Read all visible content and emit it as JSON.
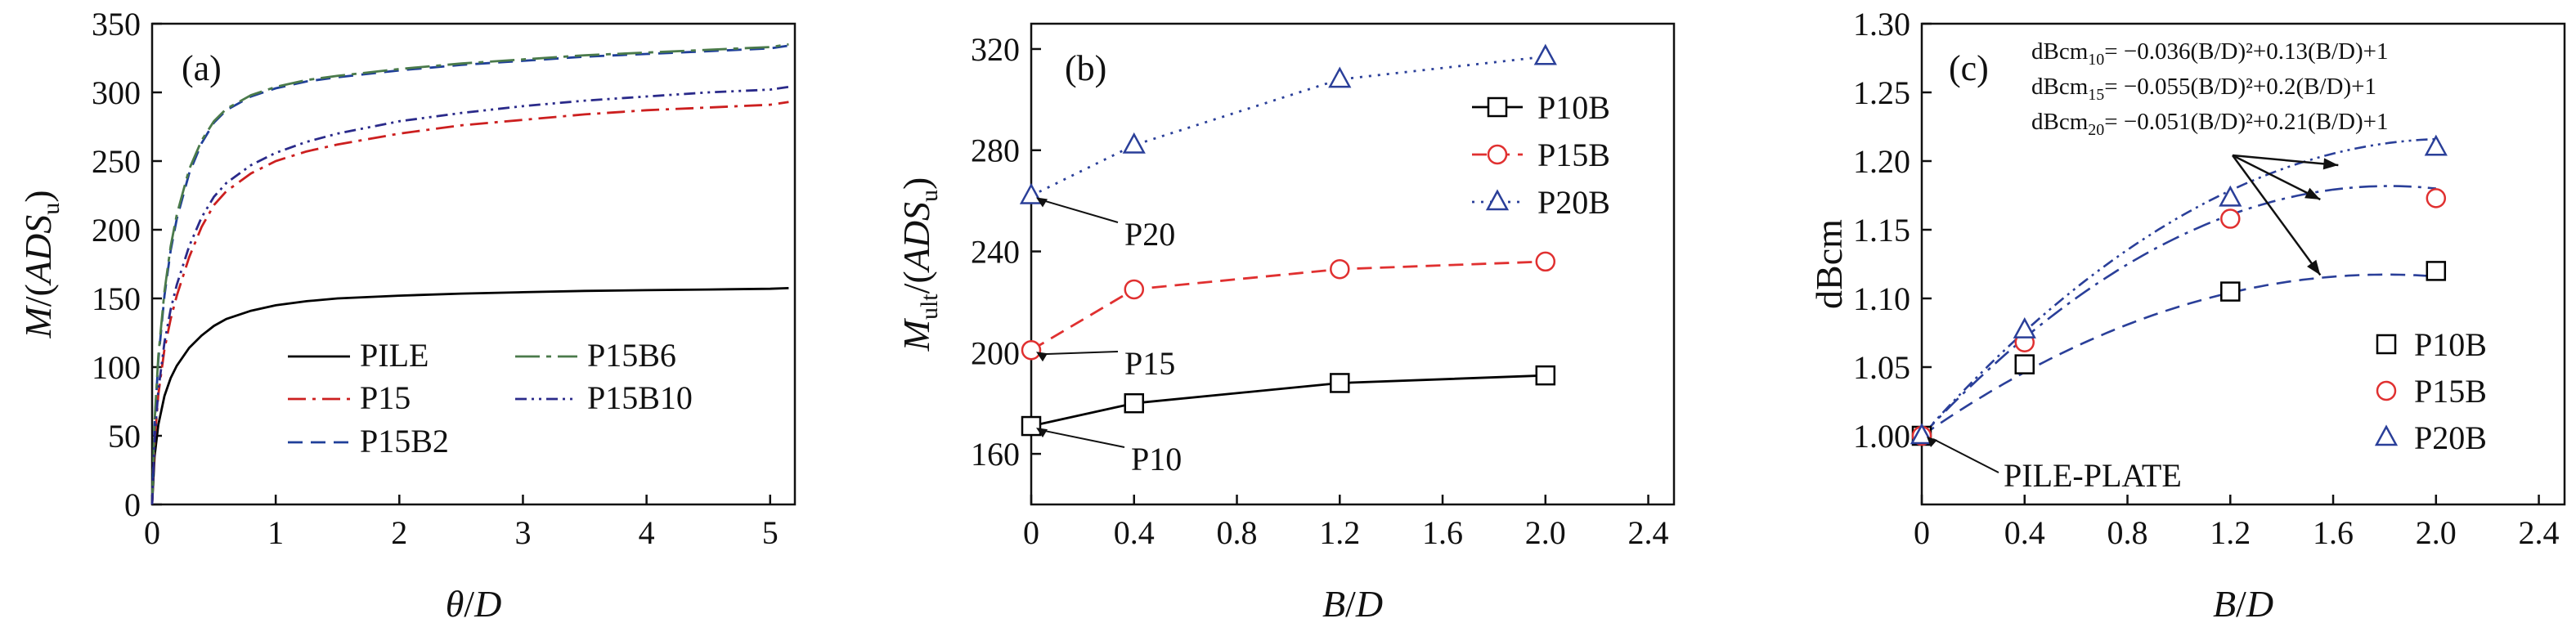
{
  "chart_data": [
    {
      "type": "line",
      "panel": "(a)",
      "xlabel": "θ/D",
      "ylabel": "M/(ADSu)",
      "xlim": [
        0,
        5.2
      ],
      "ylim": [
        0,
        350
      ],
      "xticks": [
        "0",
        "1",
        "2",
        "3",
        "4",
        "5"
      ],
      "yticks": [
        "0",
        "50",
        "100",
        "150",
        "200",
        "250",
        "300",
        "350"
      ],
      "legend_position": "bottom-right",
      "series": [
        {
          "name": "PILE",
          "color": "#000000",
          "dash": "solid",
          "x": [
            0,
            0.02,
            0.05,
            0.1,
            0.15,
            0.2,
            0.3,
            0.4,
            0.5,
            0.6,
            0.8,
            1.0,
            1.25,
            1.5,
            2.0,
            2.5,
            3.0,
            3.5,
            4.0,
            4.5,
            5.0,
            5.15
          ],
          "y": [
            0,
            35,
            58,
            79,
            92,
            101,
            114,
            123,
            130,
            135,
            141,
            145,
            148,
            150,
            152,
            153.5,
            154.5,
            155.5,
            156,
            156.5,
            157,
            157.5
          ]
        },
        {
          "name": "P15",
          "color": "#cc1f1f",
          "dash": "dashdot",
          "x": [
            0,
            0.02,
            0.05,
            0.1,
            0.15,
            0.2,
            0.3,
            0.4,
            0.5,
            0.6,
            0.8,
            1.0,
            1.25,
            1.5,
            2.0,
            2.5,
            3.0,
            3.5,
            4.0,
            4.5,
            5.0,
            5.15
          ],
          "y": [
            0,
            45,
            80,
            113,
            135,
            152,
            180,
            202,
            218,
            228,
            241,
            250,
            257,
            262,
            270,
            276,
            280,
            284,
            287,
            289,
            291,
            293
          ]
        },
        {
          "name": "P15B2",
          "color": "#1f3f99",
          "dash": "dash",
          "x": [
            0,
            0.02,
            0.05,
            0.1,
            0.15,
            0.2,
            0.3,
            0.4,
            0.5,
            0.6,
            0.8,
            1.0,
            1.25,
            1.5,
            2.0,
            2.5,
            3.0,
            3.5,
            4.0,
            4.5,
            5.0,
            5.15
          ],
          "y": [
            0,
            58,
            105,
            152,
            185,
            208,
            241,
            263,
            278,
            287,
            297,
            303,
            308,
            311,
            316,
            320,
            323,
            326,
            328,
            330,
            332,
            334
          ]
        },
        {
          "name": "P15B6",
          "color": "#4a7a4a",
          "dash": "dashdotlong",
          "x": [
            0,
            0.02,
            0.05,
            0.1,
            0.15,
            0.2,
            0.3,
            0.4,
            0.5,
            0.6,
            0.8,
            1.0,
            1.25,
            1.5,
            2.0,
            2.5,
            3.0,
            3.5,
            4.0,
            4.5,
            5.0,
            5.15
          ],
          "y": [
            0,
            60,
            108,
            155,
            188,
            211,
            244,
            265,
            279,
            288,
            298,
            304,
            309,
            312,
            317,
            321,
            324,
            327,
            329,
            331,
            333,
            335
          ]
        },
        {
          "name": "P15B10",
          "color": "#2a2a8a",
          "dash": "dashdotdot",
          "x": [
            0,
            0.02,
            0.05,
            0.1,
            0.15,
            0.2,
            0.3,
            0.4,
            0.5,
            0.6,
            0.8,
            1.0,
            1.25,
            1.5,
            2.0,
            2.5,
            3.0,
            3.5,
            4.0,
            4.5,
            5.0,
            5.15
          ],
          "y": [
            0,
            47,
            83,
            118,
            142,
            160,
            188,
            209,
            224,
            234,
            247,
            256,
            264,
            270,
            279,
            285,
            290,
            294,
            297,
            300,
            302,
            304
          ]
        }
      ]
    },
    {
      "type": "line",
      "panel": "(b)",
      "xlabel": "B/D",
      "ylabel": "Mult/(ADSu)",
      "xlim": [
        0,
        2.5
      ],
      "ylim": [
        140,
        330
      ],
      "xticks": [
        "0",
        "0.4",
        "0.8",
        "1.2",
        "1.6",
        "2.0",
        "2.4"
      ],
      "yticks": [
        "160",
        "200",
        "240",
        "280",
        "320"
      ],
      "legend_position": "right-middle",
      "series": [
        {
          "name": "P10B",
          "color": "#000000",
          "marker": "square",
          "dash": "solid",
          "x": [
            0,
            0.4,
            1.2,
            2.0
          ],
          "y": [
            171,
            180,
            188,
            191
          ]
        },
        {
          "name": "P15B",
          "color": "#e03030",
          "marker": "circle",
          "dash": "dash",
          "x": [
            0,
            0.4,
            1.2,
            2.0
          ],
          "y": [
            201,
            225,
            233,
            236
          ]
        },
        {
          "name": "P20B",
          "color": "#2a3f99",
          "marker": "triangle",
          "dash": "dot",
          "x": [
            0,
            0.4,
            1.2,
            2.0
          ],
          "y": [
            262,
            282,
            308,
            317
          ]
        }
      ],
      "annotations": [
        {
          "text": "P20",
          "x": 0,
          "y": 262
        },
        {
          "text": "P15",
          "x": 0,
          "y": 201
        },
        {
          "text": "P10",
          "x": 0,
          "y": 171
        }
      ]
    },
    {
      "type": "scatter",
      "panel": "(c)",
      "xlabel": "B/D",
      "ylabel": "dBcm",
      "xlim": [
        0,
        2.5
      ],
      "ylim": [
        0.95,
        1.3
      ],
      "xticks": [
        "0",
        "0.4",
        "0.8",
        "1.2",
        "1.6",
        "2.0",
        "2.4"
      ],
      "yticks": [
        "1.00",
        "1.05",
        "1.10",
        "1.15",
        "1.20",
        "1.25",
        "1.30"
      ],
      "legend_position": "bottom-right",
      "series": [
        {
          "name": "P10B",
          "color": "#000000",
          "marker": "square",
          "x": [
            0,
            0.4,
            1.2,
            2.0
          ],
          "y": [
            1.0,
            1.052,
            1.105,
            1.12
          ],
          "fit": [
            -0.036,
            0.13,
            1
          ]
        },
        {
          "name": "P15B",
          "color": "#e03030",
          "marker": "circle",
          "x": [
            0,
            0.4,
            1.2,
            2.0
          ],
          "y": [
            1.0,
            1.068,
            1.158,
            1.173
          ],
          "fit": [
            -0.055,
            0.2,
            1
          ]
        },
        {
          "name": "P20B",
          "color": "#2a3f99",
          "marker": "triangle",
          "x": [
            0,
            0.4,
            1.2,
            2.0
          ],
          "y": [
            1.0,
            1.077,
            1.173,
            1.21
          ],
          "fit": [
            -0.051,
            0.21,
            1
          ]
        }
      ],
      "equations": [
        {
          "lhs": "dBcm",
          "sub": "10",
          "rhs": "= −0.036(B/D)²+0.13(B/D)+1"
        },
        {
          "lhs": "dBcm",
          "sub": "15",
          "rhs": "= −0.055(B/D)²+0.2(B/D)+1"
        },
        {
          "lhs": "dBcm",
          "sub": "20",
          "rhs": "= −0.051(B/D)²+0.21(B/D)+1"
        }
      ],
      "annotations": [
        {
          "text": "PILE-PLATE",
          "x": 0,
          "y": 1.0
        }
      ]
    }
  ]
}
